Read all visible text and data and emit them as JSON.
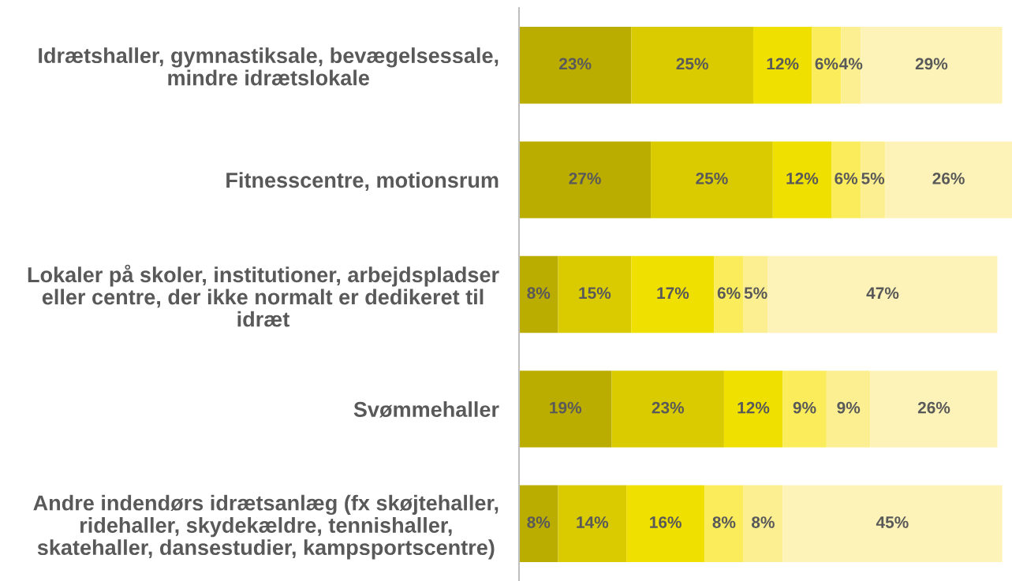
{
  "chart_data": {
    "type": "bar",
    "orientation": "horizontal",
    "stacked": true,
    "tick_labels": "y",
    "xlim": [
      0,
      101
    ],
    "categories": [
      "Idrætshaller, gymnastiksale, bevægelsessale,\nmindre idrætslokale",
      "Fitnesscentre, motionsrum",
      "Lokaler på skoler, institutioner, arbejdspladser\neller centre, der ikke normalt er dedikeret til\nidræt",
      "Svømmehaller",
      "Andre indendørs idrætsanlæg (fx skøjtehaller,\nridehaller, skydekældre, tennishaller,\nskatehaller, dansestudier, kampsportscentre)"
    ],
    "series": [
      {
        "color": "#bbad00",
        "values": [
          23,
          27,
          8,
          19,
          8
        ],
        "value_labels": [
          "23%",
          "27%",
          "8%",
          "19%",
          "8%"
        ]
      },
      {
        "color": "#d9cb00",
        "values": [
          25,
          25,
          15,
          23,
          14
        ],
        "value_labels": [
          "25%",
          "25%",
          "15%",
          "23%",
          "14%"
        ]
      },
      {
        "color": "#f0e000",
        "values": [
          12,
          12,
          17,
          12,
          16
        ],
        "value_labels": [
          "12%",
          "12%",
          "17%",
          "12%",
          "16%"
        ]
      },
      {
        "color": "#fbec5c",
        "values": [
          6,
          6,
          6,
          9,
          8
        ],
        "value_labels": [
          "6%",
          "6%",
          "6%",
          "9%",
          "8%"
        ]
      },
      {
        "color": "#fcef92",
        "values": [
          4,
          5,
          5,
          9,
          8
        ],
        "value_labels": [
          "4%",
          "5%",
          "5%",
          "9%",
          "8%"
        ]
      },
      {
        "color": "#fdf3b9",
        "values": [
          29,
          26,
          47,
          26,
          45
        ],
        "value_labels": [
          "29%",
          "26%",
          "47%",
          "26%",
          "45%"
        ]
      }
    ]
  }
}
